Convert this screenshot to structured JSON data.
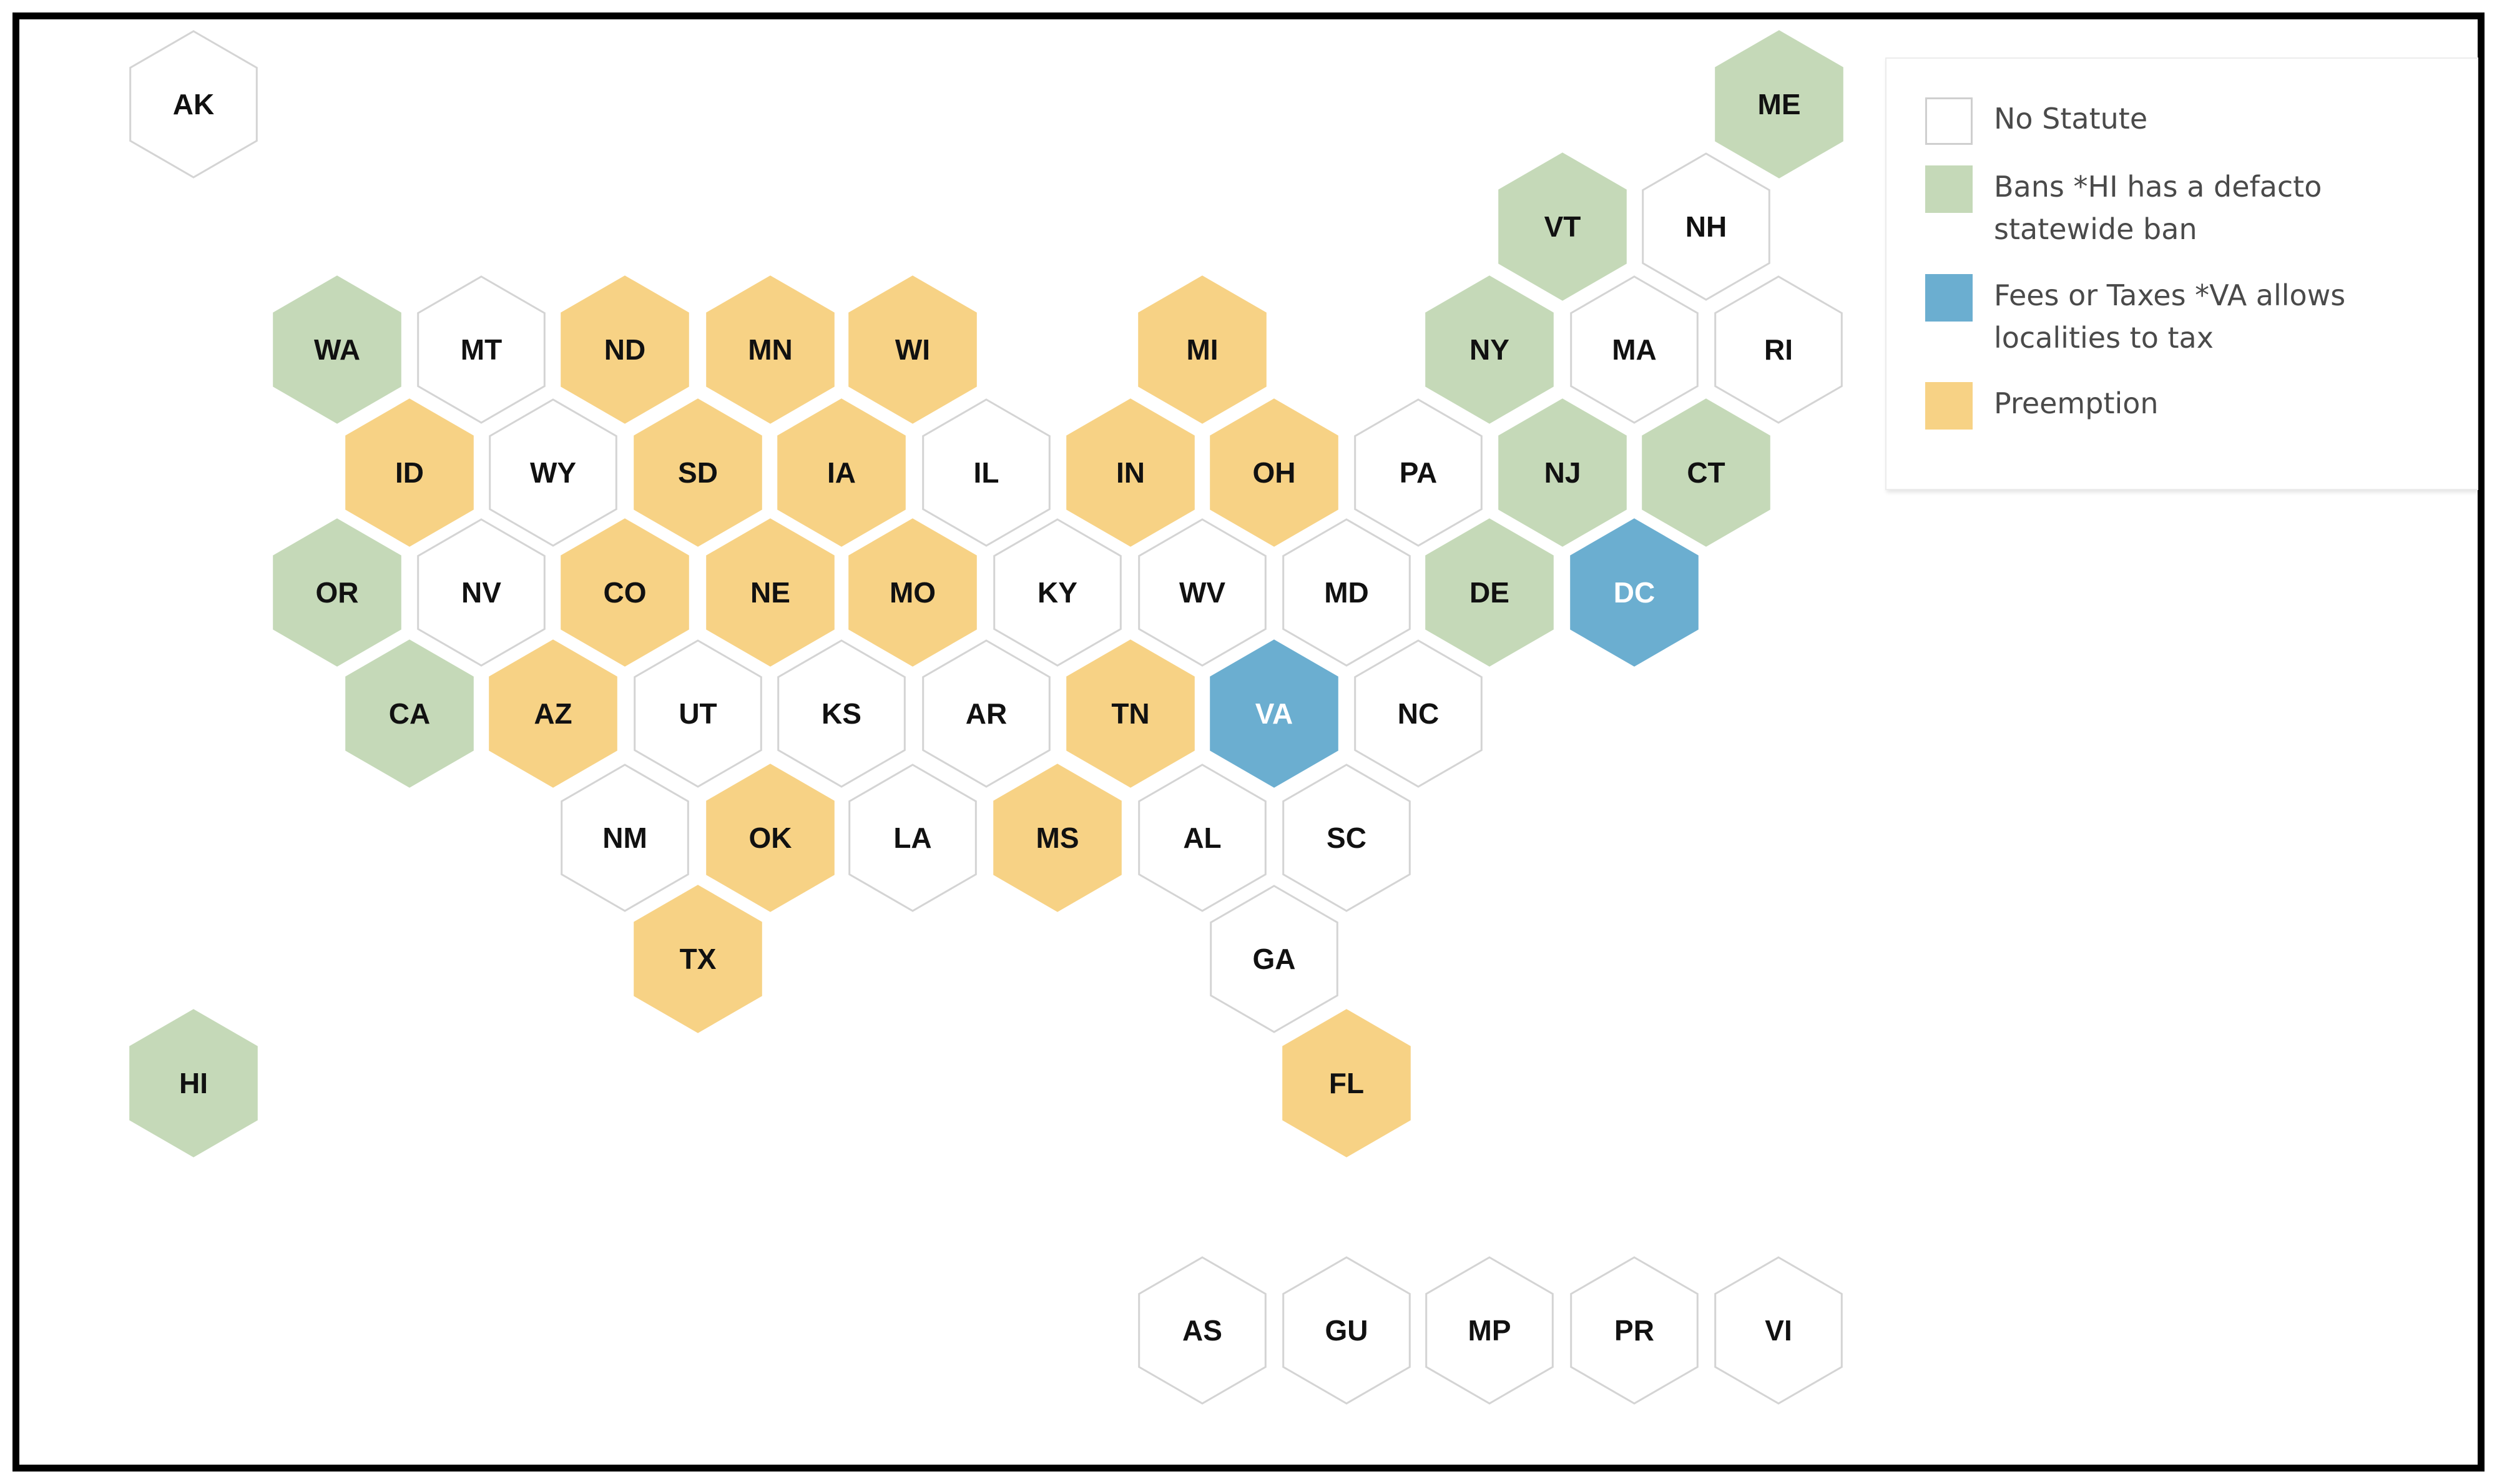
{
  "colors": {
    "none": "#ffffff",
    "ban": "#c5d9b8",
    "fee": "#6baed0",
    "preemption": "#f7d285",
    "hex_stroke": "#d4d4d4",
    "label": "#111111",
    "label_on_dark": "#ffffff"
  },
  "legend": [
    {
      "key": "none",
      "label": "No Statute"
    },
    {
      "key": "ban",
      "label": "Bans *HI has a defacto statewide ban"
    },
    {
      "key": "fee",
      "label": "Fees or Taxes *VA allows localities to tax"
    },
    {
      "key": "preemption",
      "label": "Preemption"
    }
  ],
  "states": [
    {
      "abbr": "AK",
      "category": "none"
    },
    {
      "abbr": "ME",
      "category": "ban"
    },
    {
      "abbr": "VT",
      "category": "ban"
    },
    {
      "abbr": "NH",
      "category": "none"
    },
    {
      "abbr": "WA",
      "category": "ban"
    },
    {
      "abbr": "MT",
      "category": "none"
    },
    {
      "abbr": "ND",
      "category": "preemption"
    },
    {
      "abbr": "MN",
      "category": "preemption"
    },
    {
      "abbr": "WI",
      "category": "preemption"
    },
    {
      "abbr": "MI",
      "category": "preemption"
    },
    {
      "abbr": "NY",
      "category": "ban"
    },
    {
      "abbr": "MA",
      "category": "none"
    },
    {
      "abbr": "RI",
      "category": "none"
    },
    {
      "abbr": "ID",
      "category": "preemption"
    },
    {
      "abbr": "WY",
      "category": "none"
    },
    {
      "abbr": "SD",
      "category": "preemption"
    },
    {
      "abbr": "IA",
      "category": "preemption"
    },
    {
      "abbr": "IL",
      "category": "none"
    },
    {
      "abbr": "IN",
      "category": "preemption"
    },
    {
      "abbr": "OH",
      "category": "preemption"
    },
    {
      "abbr": "PA",
      "category": "none"
    },
    {
      "abbr": "NJ",
      "category": "ban"
    },
    {
      "abbr": "CT",
      "category": "ban"
    },
    {
      "abbr": "OR",
      "category": "ban"
    },
    {
      "abbr": "NV",
      "category": "none"
    },
    {
      "abbr": "CO",
      "category": "preemption"
    },
    {
      "abbr": "NE",
      "category": "preemption"
    },
    {
      "abbr": "MO",
      "category": "preemption"
    },
    {
      "abbr": "KY",
      "category": "none"
    },
    {
      "abbr": "WV",
      "category": "none"
    },
    {
      "abbr": "MD",
      "category": "none"
    },
    {
      "abbr": "DE",
      "category": "ban"
    },
    {
      "abbr": "DC",
      "category": "fee"
    },
    {
      "abbr": "CA",
      "category": "ban"
    },
    {
      "abbr": "AZ",
      "category": "preemption"
    },
    {
      "abbr": "UT",
      "category": "none"
    },
    {
      "abbr": "KS",
      "category": "none"
    },
    {
      "abbr": "AR",
      "category": "none"
    },
    {
      "abbr": "TN",
      "category": "preemption"
    },
    {
      "abbr": "VA",
      "category": "fee"
    },
    {
      "abbr": "NC",
      "category": "none"
    },
    {
      "abbr": "NM",
      "category": "none"
    },
    {
      "abbr": "OK",
      "category": "preemption"
    },
    {
      "abbr": "LA",
      "category": "none"
    },
    {
      "abbr": "MS",
      "category": "preemption"
    },
    {
      "abbr": "AL",
      "category": "none"
    },
    {
      "abbr": "SC",
      "category": "none"
    },
    {
      "abbr": "TX",
      "category": "preemption"
    },
    {
      "abbr": "GA",
      "category": "none"
    },
    {
      "abbr": "HI",
      "category": "ban"
    },
    {
      "abbr": "FL",
      "category": "preemption"
    },
    {
      "abbr": "AS",
      "category": "none"
    },
    {
      "abbr": "GU",
      "category": "none"
    },
    {
      "abbr": "MP",
      "category": "none"
    },
    {
      "abbr": "PR",
      "category": "none"
    },
    {
      "abbr": "VI",
      "category": "none"
    }
  ]
}
